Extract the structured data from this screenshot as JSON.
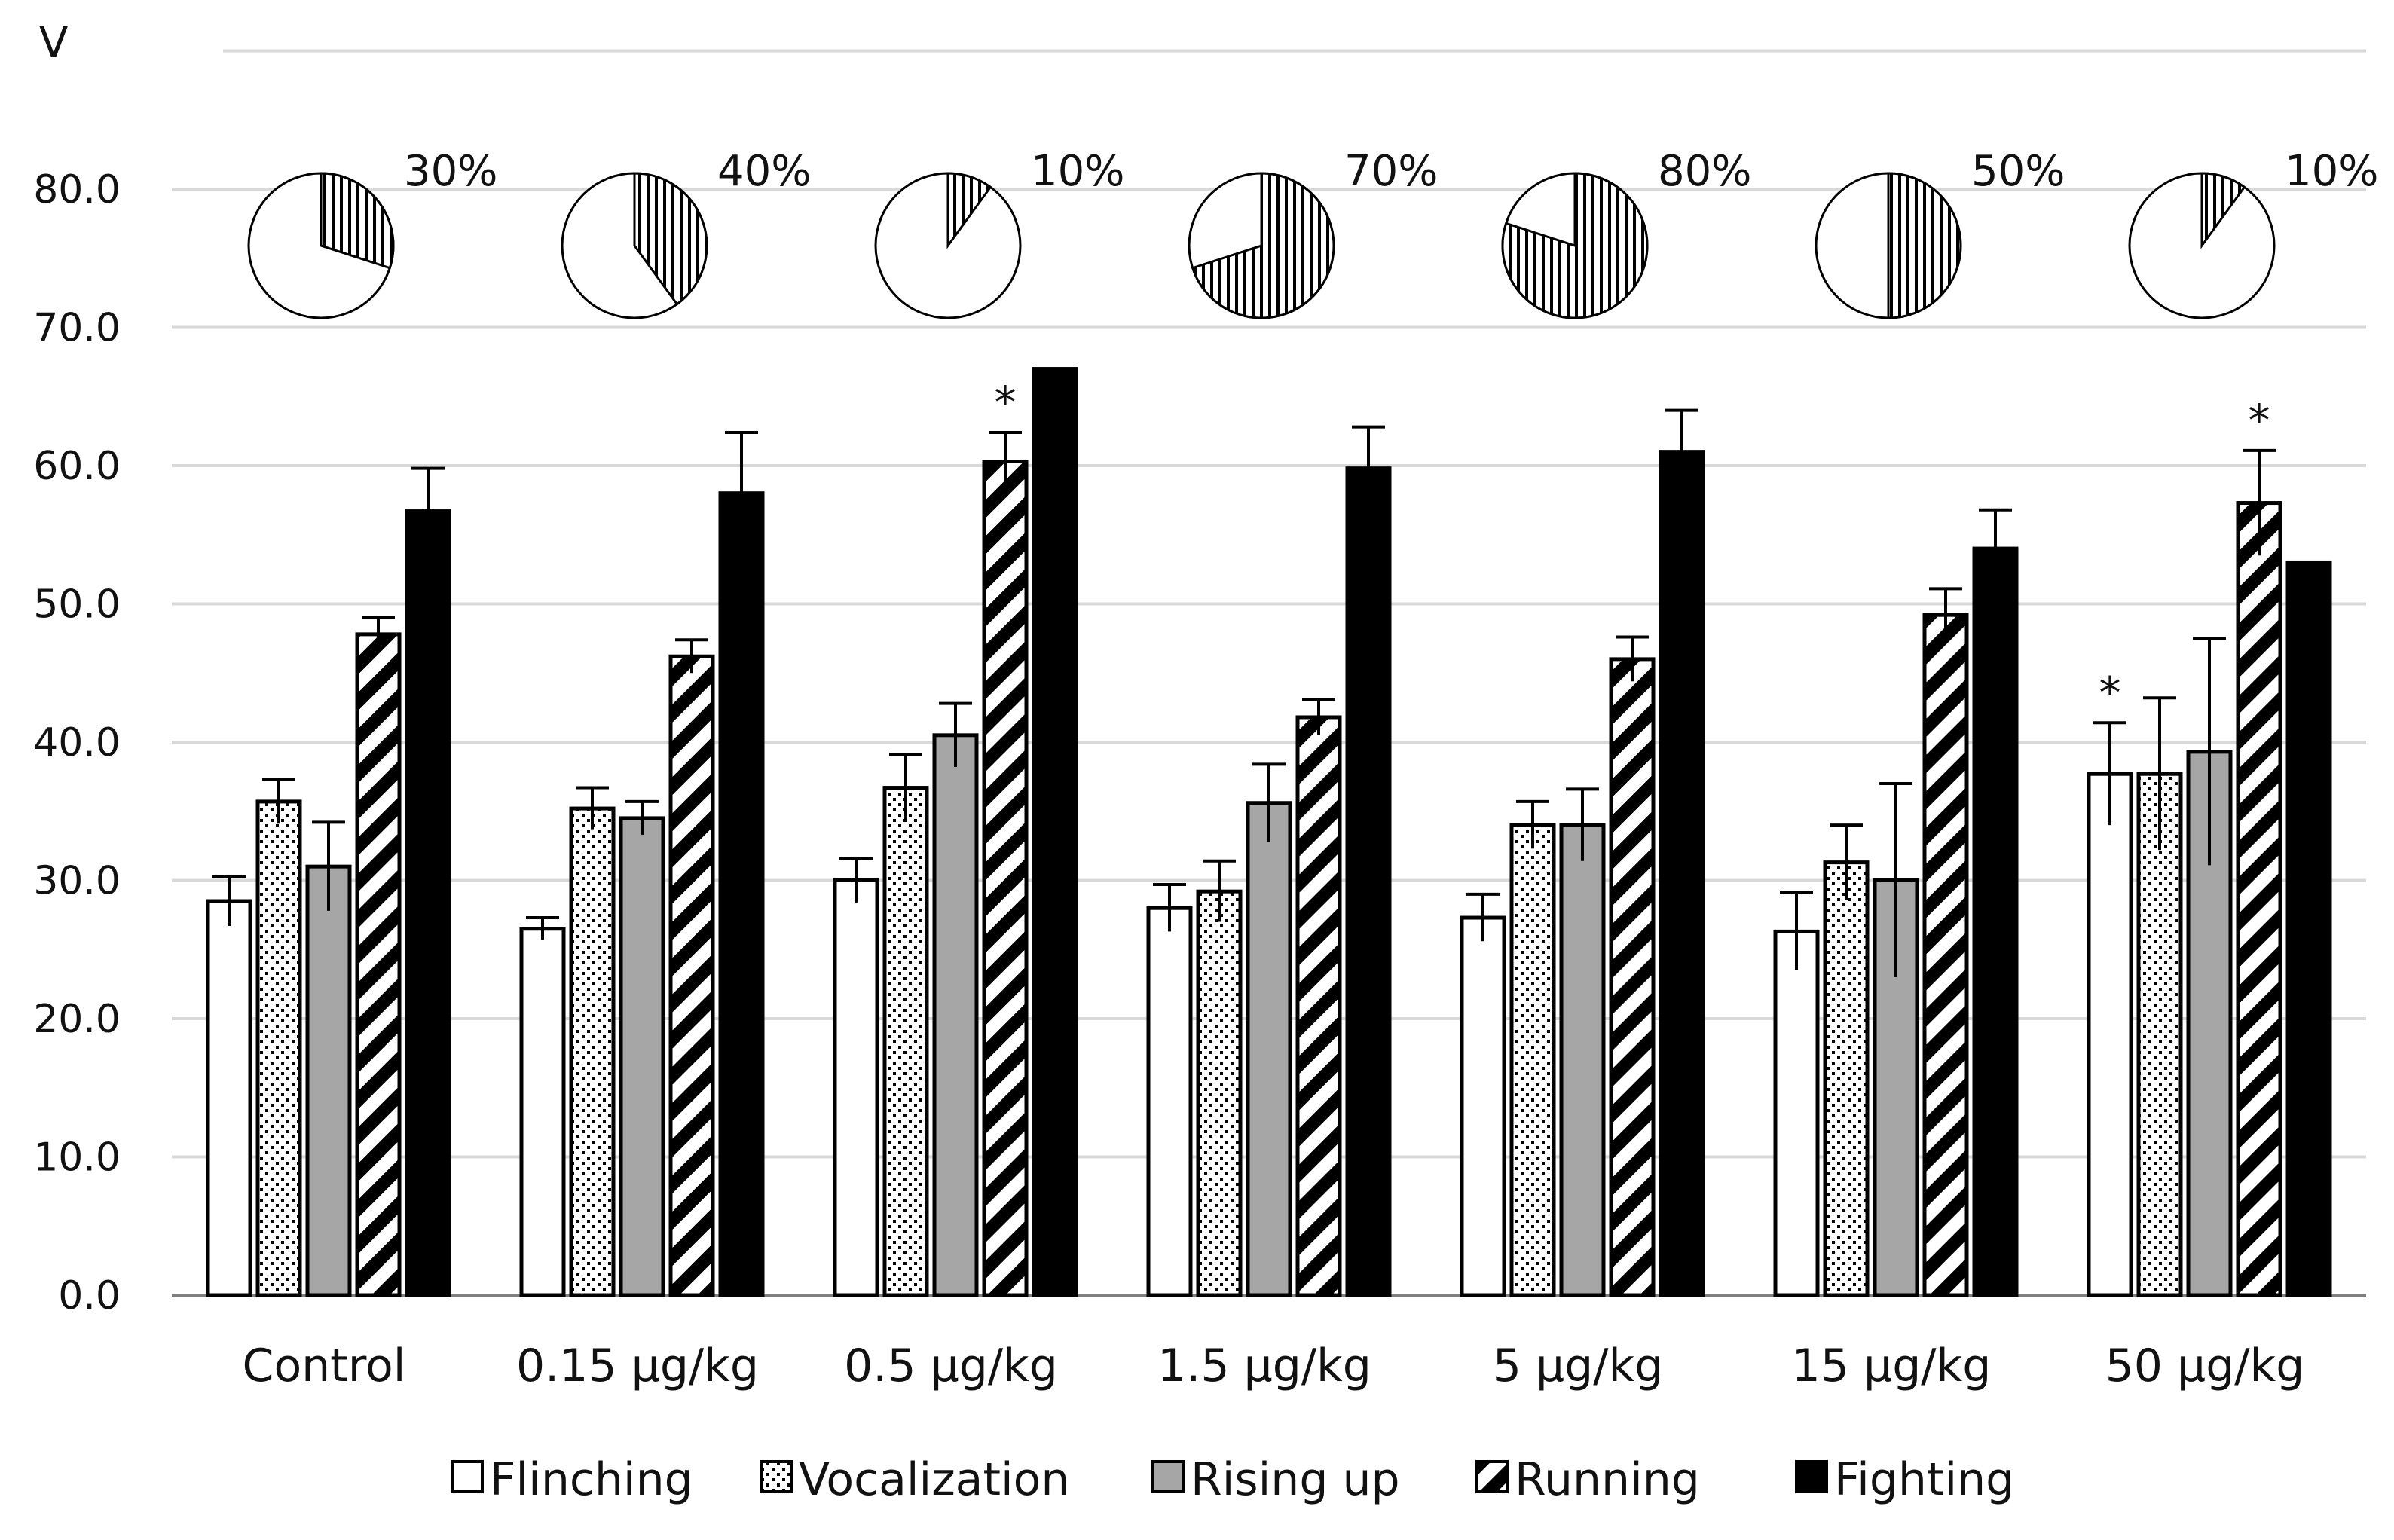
{
  "chart_data": {
    "type": "bar",
    "title": "",
    "xlabel": "",
    "ylabel": "V",
    "ylim": [
      0,
      90
    ],
    "yticks": [
      "0.0",
      "10.0",
      "20.0",
      "30.0",
      "40.0",
      "50.0",
      "60.0",
      "70.0",
      "80.0"
    ],
    "categories": [
      "Control",
      "0.15 µg/kg",
      "0.5 µg/kg",
      "1.5 µg/kg",
      "5 µg/kg",
      "15 µg/kg",
      "50 µg/kg"
    ],
    "series": [
      {
        "name": "Flinching",
        "pattern": "white",
        "values": [
          28.5,
          26.5,
          30.0,
          28.0,
          27.3,
          26.3,
          37.7
        ],
        "errors": [
          1.8,
          0.8,
          1.6,
          1.7,
          1.7,
          2.8,
          3.7
        ]
      },
      {
        "name": "Vocalization",
        "pattern": "dots",
        "values": [
          35.7,
          35.2,
          36.7,
          29.2,
          34.0,
          31.3,
          37.7
        ],
        "errors": [
          1.6,
          1.5,
          2.4,
          2.2,
          1.7,
          2.7,
          5.5
        ]
      },
      {
        "name": "Rising up",
        "pattern": "gray",
        "values": [
          31.0,
          34.5,
          40.5,
          35.6,
          34.0,
          30.0,
          39.3
        ],
        "errors": [
          3.2,
          1.2,
          2.3,
          2.8,
          2.6,
          7.0,
          8.2
        ]
      },
      {
        "name": "Running",
        "pattern": "diagonal",
        "values": [
          47.8,
          46.2,
          60.3,
          41.8,
          46.0,
          49.2,
          57.3
        ],
        "errors": [
          1.2,
          1.2,
          2.1,
          1.3,
          1.6,
          1.9,
          3.8
        ]
      },
      {
        "name": "Fighting",
        "pattern": "black",
        "values": [
          56.7,
          58.0,
          67.0,
          59.8,
          61.0,
          54.0,
          53.0
        ],
        "errors": [
          3.1,
          4.4,
          0,
          3.0,
          3.0,
          2.8,
          0
        ]
      }
    ],
    "significance": [
      {
        "category": "0.5 µg/kg",
        "series": "Running",
        "label": "*"
      },
      {
        "category": "50 µg/kg",
        "series": "Flinching",
        "label": "*"
      },
      {
        "category": "50 µg/kg",
        "series": "Running",
        "label": "*"
      }
    ],
    "pies": [
      {
        "category": "Control",
        "value": 30,
        "label": "30%"
      },
      {
        "category": "0.15 µg/kg",
        "value": 40,
        "label": "40%"
      },
      {
        "category": "0.5 µg/kg",
        "value": 10,
        "label": "10%"
      },
      {
        "category": "1.5 µg/kg",
        "value": 70,
        "label": "70%"
      },
      {
        "category": "5 µg/kg",
        "value": 80,
        "label": "80%"
      },
      {
        "category": "15 µg/kg",
        "value": 50,
        "label": "50%"
      },
      {
        "category": "50 µg/kg",
        "value": 10,
        "label": "10%"
      }
    ],
    "legend_position": "bottom",
    "grid": true
  }
}
